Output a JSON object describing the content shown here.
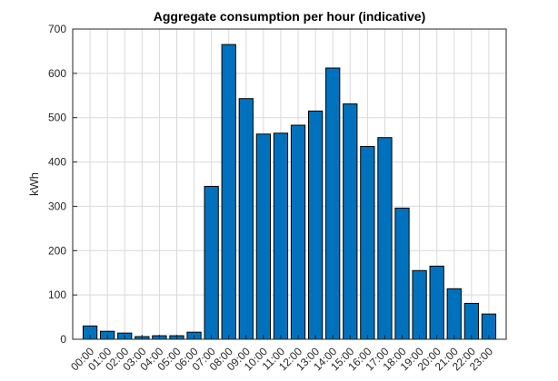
{
  "chart_data": {
    "type": "bar",
    "title": "Aggregate consumption per hour (indicative)",
    "xlabel": "",
    "ylabel": "kWh",
    "categories": [
      "00:00",
      "01:00",
      "02:00",
      "03:00",
      "04:00",
      "05:00",
      "06:00",
      "07:00",
      "08:00",
      "09:00",
      "10:00",
      "11:00",
      "12:00",
      "13:00",
      "14:00",
      "15:00",
      "16:00",
      "17:00",
      "18:00",
      "19:00",
      "20:00",
      "21:00",
      "22:00",
      "23:00"
    ],
    "values": [
      30,
      18,
      14,
      6,
      8,
      8,
      16,
      345,
      665,
      543,
      463,
      465,
      483,
      515,
      612,
      531,
      435,
      455,
      296,
      155,
      165,
      114,
      81,
      57
    ],
    "ylim": [
      0,
      700
    ],
    "yticks": [
      0,
      100,
      200,
      300,
      400,
      500,
      600,
      700
    ],
    "grid": true,
    "bar_color": "#0072BD",
    "bar_edge_color": "#000000"
  }
}
